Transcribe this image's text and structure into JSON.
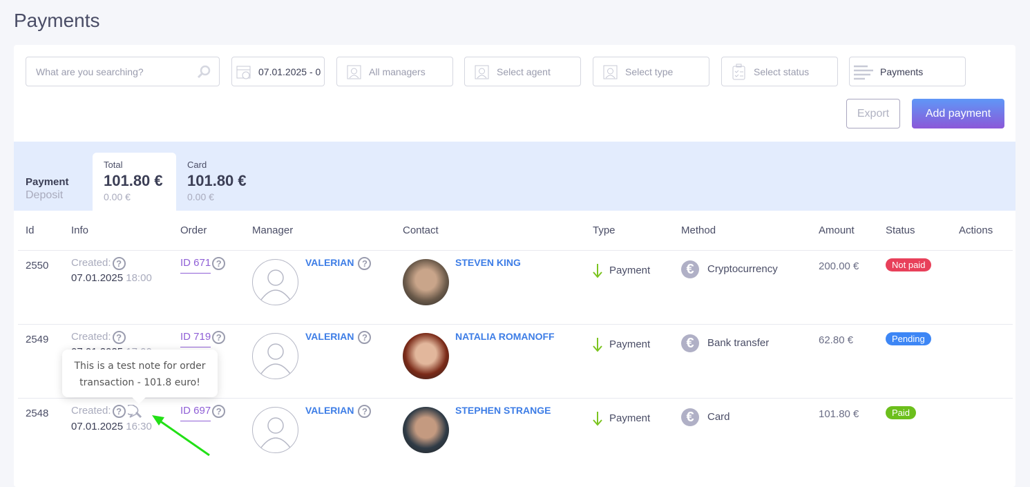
{
  "page": {
    "title": "Payments"
  },
  "filters": {
    "search_placeholder": "What are you searching?",
    "date_range": "07.01.2025 - 0",
    "managers": "All managers",
    "agent": "Select agent",
    "type": "Select type",
    "status": "Select status",
    "view": "Payments"
  },
  "toolbar": {
    "export_label": "Export",
    "add_label": "Add payment"
  },
  "summary": {
    "row_label": "Payment",
    "row_sublabel": "Deposit",
    "tabs": [
      {
        "label": "Total",
        "amount": "101.80 €",
        "deposit": "0.00 €",
        "active": true
      },
      {
        "label": "Card",
        "amount": "101.80 €",
        "deposit": "0.00 €",
        "active": false
      }
    ]
  },
  "table": {
    "headers": [
      "Id",
      "Info",
      "Order",
      "Manager",
      "Contact",
      "Type",
      "Method",
      "Amount",
      "Status",
      "Actions"
    ],
    "rows": [
      {
        "id": "2550",
        "created_label": "Created:",
        "date": "07.01.2025",
        "time": "18:00",
        "order": "ID 671",
        "manager": "VALERIAN",
        "contact": "STEVEN KING",
        "type": "Payment",
        "method": "Cryptocurrency",
        "amount": "200.00 €",
        "status": "Not paid",
        "status_color": "#e8405a"
      },
      {
        "id": "2549",
        "created_label": "Created:",
        "date": "07.01.2025",
        "time": "17:00",
        "order": "ID 719",
        "manager": "VALERIAN",
        "contact": "NATALIA ROMANOFF",
        "type": "Payment",
        "method": "Bank transfer",
        "amount": "62.80 €",
        "status": "Pending",
        "status_color": "#3d86f5"
      },
      {
        "id": "2548",
        "created_label": "Created:",
        "date": "07.01.2025",
        "time": "16:30",
        "order": "ID 697",
        "manager": "VALERIAN",
        "contact": "STEPHEN STRANGE",
        "type": "Payment",
        "method": "Card",
        "amount": "101.80 €",
        "status": "Paid",
        "status_color": "#6cbf1c"
      }
    ]
  },
  "tooltip": {
    "line1": "This is a test note for order",
    "line2": "transaction - 101.8 euro!"
  },
  "colors": {
    "accent": "#3d7de6",
    "band": "#e3ecfd",
    "annotation_arrow": "#22e016"
  }
}
